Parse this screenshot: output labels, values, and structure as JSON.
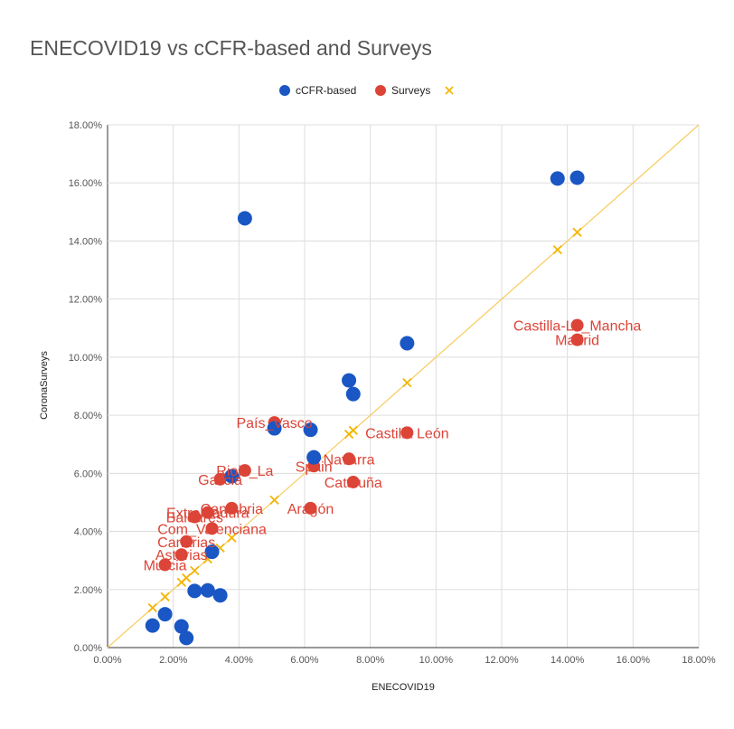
{
  "chart_data": {
    "type": "scatter",
    "title": "ENECOVID19 vs cCFR-based and Surveys",
    "xlabel": "ENECOVID19",
    "ylabel": "CoronaSurveys",
    "xlim": [
      0,
      0.18
    ],
    "ylim": [
      0,
      0.18
    ],
    "x_ticks": [
      "0.00%",
      "2.00%",
      "4.00%",
      "6.00%",
      "8.00%",
      "10.00%",
      "12.00%",
      "14.00%",
      "16.00%",
      "18.00%"
    ],
    "y_ticks": [
      "0.00%",
      "2.00%",
      "4.00%",
      "6.00%",
      "8.00%",
      "10.00%",
      "12.00%",
      "14.00%",
      "16.00%",
      "18.00%"
    ],
    "grid": true,
    "legend_position": "top-center",
    "colors": {
      "ccfr": "#1a56c4",
      "surveys": "#db4437",
      "diagonal": "#f4b400",
      "grid": "#dddddd"
    },
    "series": [
      {
        "name": "cCFR-based",
        "points": [
          {
            "x": 0.0137,
            "y": 0.0076
          },
          {
            "x": 0.0175,
            "y": 0.0115
          },
          {
            "x": 0.0225,
            "y": 0.0073
          },
          {
            "x": 0.024,
            "y": 0.0033
          },
          {
            "x": 0.0265,
            "y": 0.0195
          },
          {
            "x": 0.0305,
            "y": 0.0197
          },
          {
            "x": 0.0343,
            "y": 0.018
          },
          {
            "x": 0.0318,
            "y": 0.033
          },
          {
            "x": 0.0378,
            "y": 0.059
          },
          {
            "x": 0.0418,
            "y": 0.1478
          },
          {
            "x": 0.0508,
            "y": 0.0755
          },
          {
            "x": 0.0618,
            "y": 0.075
          },
          {
            "x": 0.0628,
            "y": 0.0655
          },
          {
            "x": 0.0735,
            "y": 0.092
          },
          {
            "x": 0.0748,
            "y": 0.0873
          },
          {
            "x": 0.0912,
            "y": 0.1048
          },
          {
            "x": 0.137,
            "y": 0.1615
          },
          {
            "x": 0.143,
            "y": 0.1618
          }
        ]
      },
      {
        "name": "Surveys",
        "points": [
          {
            "label": "Castilla-La_Mancha",
            "x": 0.143,
            "y": 0.111
          },
          {
            "label": "Madrid",
            "x": 0.143,
            "y": 0.106
          },
          {
            "label": "Castilla León",
            "x": 0.0912,
            "y": 0.074
          },
          {
            "label": "País_Vasco",
            "x": 0.0508,
            "y": 0.0775
          },
          {
            "label": "Navarra",
            "x": 0.0735,
            "y": 0.065
          },
          {
            "label": "Spain",
            "x": 0.0628,
            "y": 0.0625
          },
          {
            "label": "Cataluña",
            "x": 0.0748,
            "y": 0.057
          },
          {
            "label": "Rioja_La",
            "x": 0.0418,
            "y": 0.061
          },
          {
            "label": "Galicia",
            "x": 0.0343,
            "y": 0.058
          },
          {
            "label": "Cantabria",
            "x": 0.0378,
            "y": 0.048
          },
          {
            "label": "Aragón",
            "x": 0.0618,
            "y": 0.048
          },
          {
            "label": "Extremadura",
            "x": 0.0305,
            "y": 0.0465
          },
          {
            "label": "Baleares",
            "x": 0.0265,
            "y": 0.045
          },
          {
            "label": "Com_Valenciana",
            "x": 0.0318,
            "y": 0.041
          },
          {
            "label": "Canarias",
            "x": 0.024,
            "y": 0.0365
          },
          {
            "label": "Asturias",
            "x": 0.0225,
            "y": 0.032
          },
          {
            "label": "Murcia",
            "x": 0.0175,
            "y": 0.0285
          }
        ]
      },
      {
        "name": "",
        "marker": "cross",
        "points": [
          {
            "x": 0.0137,
            "y": 0.0137
          },
          {
            "x": 0.0175,
            "y": 0.0175
          },
          {
            "x": 0.0225,
            "y": 0.0225
          },
          {
            "x": 0.024,
            "y": 0.024
          },
          {
            "x": 0.0265,
            "y": 0.0265
          },
          {
            "x": 0.0305,
            "y": 0.0305
          },
          {
            "x": 0.0343,
            "y": 0.0343
          },
          {
            "x": 0.0378,
            "y": 0.0378
          },
          {
            "x": 0.0508,
            "y": 0.0508
          },
          {
            "x": 0.0628,
            "y": 0.0628
          },
          {
            "x": 0.0735,
            "y": 0.0735
          },
          {
            "x": 0.0748,
            "y": 0.0748
          },
          {
            "x": 0.0912,
            "y": 0.0912
          },
          {
            "x": 0.137,
            "y": 0.137
          },
          {
            "x": 0.143,
            "y": 0.143
          }
        ]
      }
    ]
  }
}
